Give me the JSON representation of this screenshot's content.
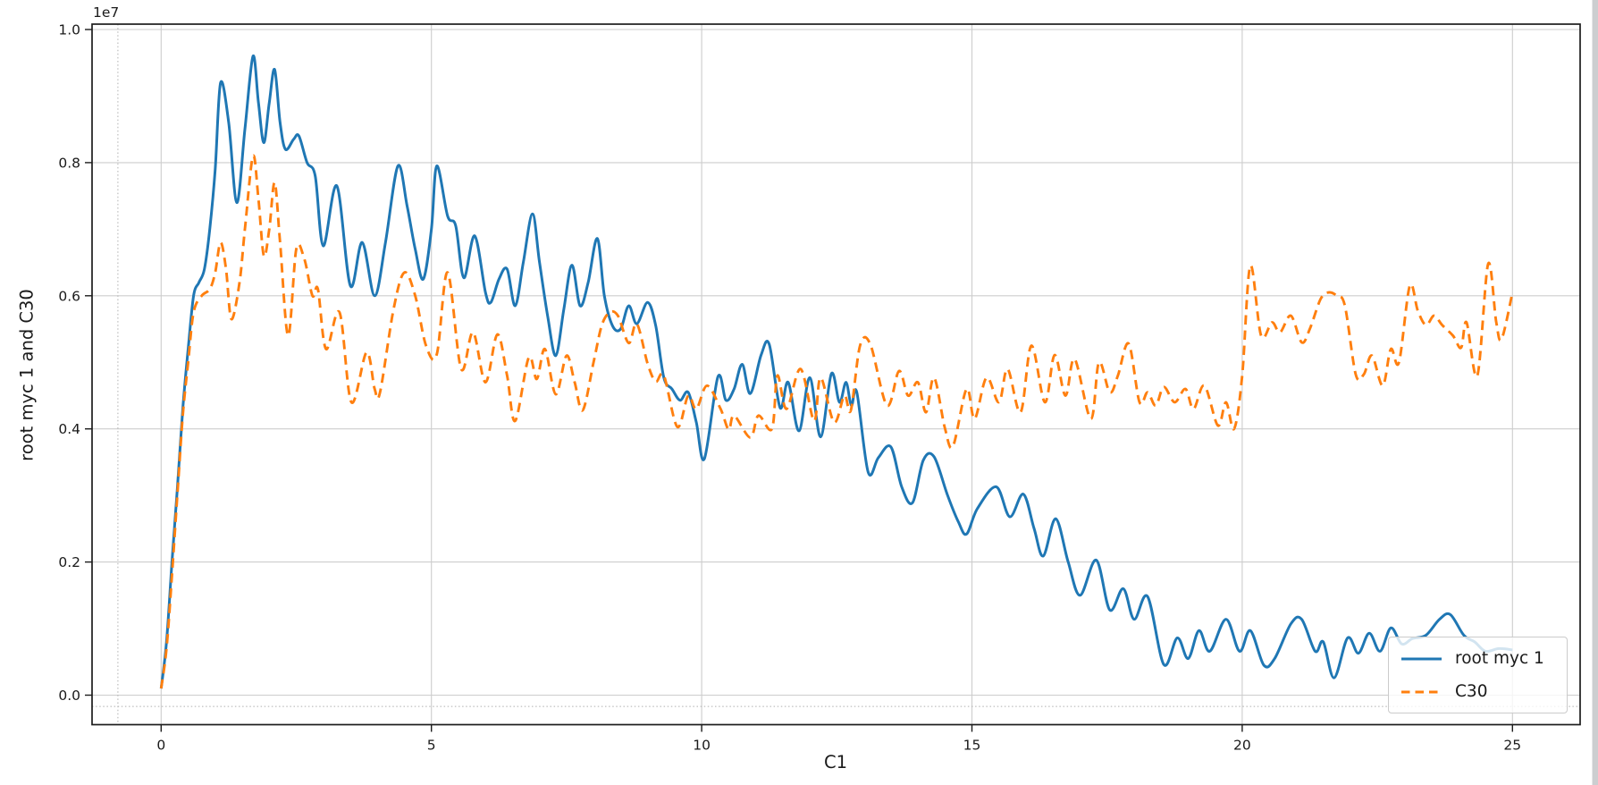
{
  "figure": {
    "offset_text": "1e7",
    "xlabel": "C1",
    "ylabel": "root myc 1 and C30",
    "background": "#ffffff",
    "grid_color": "#cdcdcd",
    "spine_color": "#1c1c1c",
    "tick_label_color": "#1a1a1a"
  },
  "legend": {
    "entries": [
      {
        "label": "root myc 1",
        "style": "solid",
        "color": "#1f77b4"
      },
      {
        "label": "C30",
        "style": "dashed",
        "color": "#ff7f0e"
      }
    ]
  },
  "chart_data": {
    "type": "line",
    "title": "",
    "xlabel": "C1",
    "ylabel": "root myc 1 and C30",
    "y_offset_multiplier": "1e7",
    "xlim": [
      -1.27,
      26.26
    ],
    "ylim_1e7": [
      -0.0437,
      1.008
    ],
    "x_ticks": [
      0,
      5,
      10,
      15,
      20,
      25
    ],
    "x_tick_labels": [
      "0",
      "5",
      "10",
      "15",
      "20",
      "25"
    ],
    "y_ticks_1e7": [
      0.0,
      0.2,
      0.4,
      0.6,
      0.8,
      1.0
    ],
    "y_tick_labels": [
      "0.0",
      "0.2",
      "0.4",
      "0.6",
      "0.8",
      "1.0"
    ],
    "grid": true,
    "legend_position": "lower right",
    "dotted_guides": {
      "x": -0.8,
      "y_1e7": -0.017
    },
    "series": [
      {
        "name": "root myc 1",
        "color": "#1f77b4",
        "line_style": "solid",
        "x": [
          0.0,
          0.1,
          0.2,
          0.3,
          0.4,
          0.5,
          0.6,
          0.7,
          0.8,
          0.9,
          1.0,
          1.1,
          1.25,
          1.4,
          1.55,
          1.7,
          1.8,
          1.9,
          2.0,
          2.1,
          2.2,
          2.3,
          2.45,
          2.55,
          2.7,
          2.85,
          3.0,
          3.25,
          3.5,
          3.72,
          3.95,
          4.15,
          4.38,
          4.55,
          4.7,
          4.85,
          5.0,
          5.1,
          5.3,
          5.45,
          5.6,
          5.8,
          6.0,
          6.1,
          6.25,
          6.4,
          6.55,
          6.7,
          6.87,
          7.0,
          7.15,
          7.3,
          7.45,
          7.6,
          7.75,
          7.9,
          8.07,
          8.2,
          8.35,
          8.5,
          8.65,
          8.8,
          9.0,
          9.15,
          9.3,
          9.45,
          9.6,
          9.75,
          9.9,
          10.05,
          10.3,
          10.45,
          10.6,
          10.75,
          10.9,
          11.1,
          11.25,
          11.45,
          11.6,
          11.8,
          12.0,
          12.2,
          12.4,
          12.55,
          12.67,
          12.77,
          12.87,
          13.08,
          13.27,
          13.5,
          13.7,
          13.9,
          14.1,
          14.3,
          14.55,
          14.75,
          14.9,
          15.1,
          15.45,
          15.7,
          15.95,
          16.15,
          16.32,
          16.55,
          16.78,
          17.0,
          17.3,
          17.55,
          17.8,
          18.0,
          18.25,
          18.55,
          18.8,
          19.0,
          19.2,
          19.4,
          19.7,
          19.95,
          20.15,
          20.4,
          20.6,
          20.9,
          21.1,
          21.35,
          21.5,
          21.7,
          21.95,
          22.15,
          22.35,
          22.55,
          22.75,
          22.95,
          23.15,
          23.4,
          23.65,
          23.85,
          24.1,
          24.3,
          24.5,
          24.75,
          25.0
        ],
        "y_1e7": [
          0.01,
          0.08,
          0.2,
          0.31,
          0.43,
          0.52,
          0.6,
          0.62,
          0.64,
          0.7,
          0.79,
          0.92,
          0.86,
          0.74,
          0.85,
          0.96,
          0.89,
          0.83,
          0.89,
          0.94,
          0.86,
          0.82,
          0.835,
          0.84,
          0.8,
          0.78,
          0.675,
          0.765,
          0.615,
          0.68,
          0.6,
          0.68,
          0.795,
          0.735,
          0.67,
          0.625,
          0.7,
          0.795,
          0.72,
          0.705,
          0.627,
          0.69,
          0.605,
          0.59,
          0.625,
          0.64,
          0.585,
          0.65,
          0.723,
          0.65,
          0.57,
          0.51,
          0.58,
          0.646,
          0.585,
          0.62,
          0.686,
          0.6,
          0.555,
          0.55,
          0.585,
          0.558,
          0.59,
          0.555,
          0.477,
          0.46,
          0.443,
          0.455,
          0.41,
          0.355,
          0.478,
          0.443,
          0.46,
          0.497,
          0.453,
          0.511,
          0.527,
          0.432,
          0.47,
          0.397,
          0.477,
          0.388,
          0.483,
          0.44,
          0.47,
          0.435,
          0.455,
          0.335,
          0.357,
          0.373,
          0.313,
          0.289,
          0.353,
          0.358,
          0.3,
          0.26,
          0.242,
          0.28,
          0.313,
          0.268,
          0.302,
          0.25,
          0.209,
          0.265,
          0.2,
          0.15,
          0.203,
          0.128,
          0.16,
          0.114,
          0.148,
          0.046,
          0.086,
          0.055,
          0.097,
          0.066,
          0.114,
          0.066,
          0.097,
          0.045,
          0.055,
          0.107,
          0.114,
          0.066,
          0.08,
          0.026,
          0.086,
          0.063,
          0.093,
          0.066,
          0.101,
          0.077,
          0.085,
          0.09,
          0.114,
          0.121,
          0.09,
          0.08,
          0.066,
          0.07,
          0.068
        ]
      },
      {
        "name": "C30",
        "color": "#ff7f0e",
        "line_style": "dashed",
        "x": [
          0.0,
          0.1,
          0.2,
          0.3,
          0.4,
          0.5,
          0.6,
          0.75,
          0.9,
          1.0,
          1.1,
          1.2,
          1.3,
          1.45,
          1.55,
          1.7,
          1.8,
          1.9,
          2.0,
          2.1,
          2.2,
          2.35,
          2.5,
          2.65,
          2.8,
          2.9,
          3.05,
          3.3,
          3.52,
          3.8,
          3.95,
          4.05,
          4.3,
          4.5,
          4.7,
          4.9,
          5.1,
          5.3,
          5.55,
          5.77,
          6.0,
          6.22,
          6.4,
          6.55,
          6.8,
          6.95,
          7.1,
          7.3,
          7.5,
          7.65,
          7.8,
          8.0,
          8.15,
          8.3,
          8.45,
          8.65,
          8.8,
          9.0,
          9.15,
          9.3,
          9.55,
          9.75,
          9.9,
          10.1,
          10.35,
          10.5,
          10.6,
          10.9,
          11.05,
          11.3,
          11.4,
          11.57,
          11.83,
          12.08,
          12.2,
          12.45,
          12.64,
          12.76,
          12.93,
          13.12,
          13.43,
          13.65,
          13.82,
          14.0,
          14.15,
          14.3,
          14.5,
          14.65,
          14.9,
          15.05,
          15.27,
          15.5,
          15.66,
          15.9,
          16.1,
          16.35,
          16.53,
          16.73,
          16.9,
          17.2,
          17.35,
          17.55,
          17.7,
          17.9,
          18.1,
          18.25,
          18.4,
          18.55,
          18.75,
          18.95,
          19.1,
          19.3,
          19.55,
          19.7,
          19.85,
          20.0,
          20.15,
          20.35,
          20.55,
          20.7,
          20.9,
          21.1,
          21.25,
          21.45,
          21.6,
          21.75,
          21.9,
          22.1,
          22.25,
          22.4,
          22.6,
          22.75,
          22.9,
          23.1,
          23.25,
          23.4,
          23.55,
          23.7,
          23.9,
          24.05,
          24.15,
          24.35,
          24.55,
          24.7,
          24.8,
          25.0
        ],
        "y_1e7": [
          0.01,
          0.07,
          0.18,
          0.3,
          0.42,
          0.5,
          0.575,
          0.6,
          0.61,
          0.635,
          0.68,
          0.64,
          0.565,
          0.62,
          0.7,
          0.81,
          0.745,
          0.66,
          0.7,
          0.77,
          0.68,
          0.54,
          0.67,
          0.655,
          0.6,
          0.61,
          0.52,
          0.575,
          0.44,
          0.515,
          0.46,
          0.455,
          0.58,
          0.635,
          0.6,
          0.525,
          0.512,
          0.635,
          0.49,
          0.545,
          0.47,
          0.542,
          0.48,
          0.412,
          0.507,
          0.475,
          0.52,
          0.452,
          0.51,
          0.47,
          0.428,
          0.5,
          0.555,
          0.575,
          0.57,
          0.529,
          0.558,
          0.498,
          0.471,
          0.48,
          0.403,
          0.45,
          0.43,
          0.465,
          0.43,
          0.399,
          0.42,
          0.387,
          0.42,
          0.4,
          0.48,
          0.43,
          0.49,
          0.412,
          0.477,
          0.41,
          0.45,
          0.428,
          0.525,
          0.527,
          0.435,
          0.487,
          0.45,
          0.47,
          0.425,
          0.477,
          0.401,
          0.374,
          0.46,
          0.415,
          0.477,
          0.44,
          0.49,
          0.425,
          0.525,
          0.44,
          0.511,
          0.45,
          0.505,
          0.415,
          0.5,
          0.455,
          0.48,
          0.528,
          0.44,
          0.455,
          0.435,
          0.463,
          0.44,
          0.46,
          0.43,
          0.465,
          0.405,
          0.44,
          0.4,
          0.48,
          0.645,
          0.54,
          0.56,
          0.545,
          0.57,
          0.53,
          0.55,
          0.595,
          0.605,
          0.6,
          0.585,
          0.482,
          0.482,
          0.51,
          0.465,
          0.52,
          0.5,
          0.615,
          0.577,
          0.556,
          0.57,
          0.556,
          0.54,
          0.522,
          0.56,
          0.48,
          0.648,
          0.56,
          0.535,
          0.605
        ]
      }
    ]
  }
}
